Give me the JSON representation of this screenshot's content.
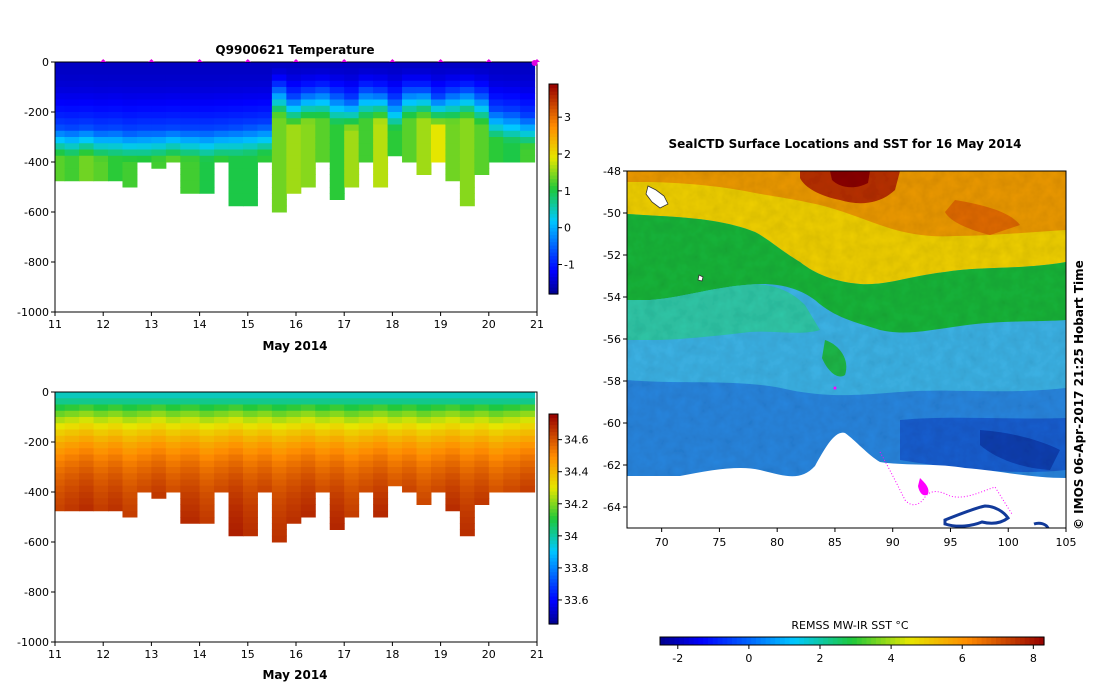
{
  "chart_data": [
    {
      "type": "heatmap",
      "title": "Q9900621  Temperature",
      "xlabel": "May 2014",
      "x_ticks": [
        "11",
        "12",
        "13",
        "14",
        "15",
        "16",
        "17",
        "18",
        "19",
        "20",
        "21"
      ],
      "xlim": [
        11,
        21
      ],
      "ylim": [
        -1000,
        0
      ],
      "y_ticks": [
        "0",
        "-200",
        "-400",
        "-600",
        "-800",
        "-1000"
      ],
      "colorbar": {
        "min": -1.8,
        "max": 3.9,
        "ticks": [
          "-1",
          "0",
          "1",
          "2",
          "3"
        ]
      },
      "marker_color": "#e000e0",
      "profile_times": [
        11.0,
        11.2,
        11.5,
        11.8,
        12.1,
        12.4,
        12.7,
        13.0,
        13.3,
        13.6,
        14.0,
        14.3,
        14.6,
        14.9,
        15.2,
        15.5,
        15.8,
        16.1,
        16.4,
        16.7,
        17.0,
        17.3,
        17.6,
        17.9,
        18.2,
        18.5,
        18.8,
        19.1,
        19.4,
        19.7,
        20.0,
        20.3,
        20.65
      ],
      "max_depth": [
        -490,
        -490,
        -490,
        -495,
        -495,
        -500,
        -400,
        -430,
        -415,
        -545,
        -540,
        -400,
        -580,
        -575,
        -400,
        -615,
        -545,
        -500,
        -400,
        -565,
        -505,
        -400,
        -500,
        -395,
        -400,
        -465,
        -400,
        -485,
        -575,
        -455,
        -410,
        -400,
        -400
      ],
      "thermocline_depth": [
        -260,
        -265,
        -260,
        -270,
        -265,
        -275,
        -270,
        -270,
        -265,
        -270,
        -270,
        -265,
        -260,
        -255,
        -250,
        -100,
        -140,
        -120,
        -110,
        -130,
        -150,
        -110,
        -120,
        -150,
        -110,
        -110,
        -140,
        -120,
        -110,
        -130,
        -190,
        -200,
        -220
      ],
      "deep_temperature": [
        1.3,
        1.2,
        1.4,
        1.3,
        1.1,
        1.2,
        1.1,
        1.2,
        1.3,
        1.2,
        1.0,
        1.1,
        1.0,
        1.0,
        1.1,
        1.4,
        1.6,
        1.5,
        1.3,
        1.1,
        1.6,
        1.2,
        1.7,
        1.1,
        1.3,
        1.6,
        1.9,
        1.4,
        1.5,
        1.3,
        1.1,
        1.0,
        1.2
      ]
    },
    {
      "type": "heatmap",
      "title": "",
      "xlabel": "May 2014",
      "x_ticks": [
        "11",
        "12",
        "13",
        "14",
        "15",
        "16",
        "17",
        "18",
        "19",
        "20",
        "21"
      ],
      "xlim": [
        11,
        21
      ],
      "ylim": [
        -1000,
        0
      ],
      "y_ticks": [
        "0",
        "-200",
        "-400",
        "-600",
        "-800",
        "-1000"
      ],
      "colorbar": {
        "min": 33.45,
        "max": 34.76,
        "ticks": [
          "33.6",
          "33.8",
          "34",
          "34.2",
          "34.4",
          "34.6"
        ]
      }
    },
    {
      "type": "heatmap",
      "title": "SealCTD Surface Locations and SST for 16 May 2014",
      "x_ticks": [
        "70",
        "75",
        "80",
        "85",
        "90",
        "95",
        "100",
        "105"
      ],
      "xlim": [
        67,
        105
      ],
      "y_ticks": [
        "-48",
        "-50",
        "-52",
        "-54",
        "-56",
        "-58",
        "-60",
        "-62",
        "-64"
      ],
      "ylim": [
        -65,
        -48
      ],
      "colorbar": {
        "label": "REMSS MW-IR SST °C",
        "min": -2.5,
        "max": 8.3,
        "ticks": [
          "-2",
          "0",
          "2",
          "4",
          "6",
          "8"
        ]
      },
      "side_label": "© IMOS 06-Apr-2017 21:25 Hobart Time",
      "track_color": "#ff00ff"
    }
  ]
}
